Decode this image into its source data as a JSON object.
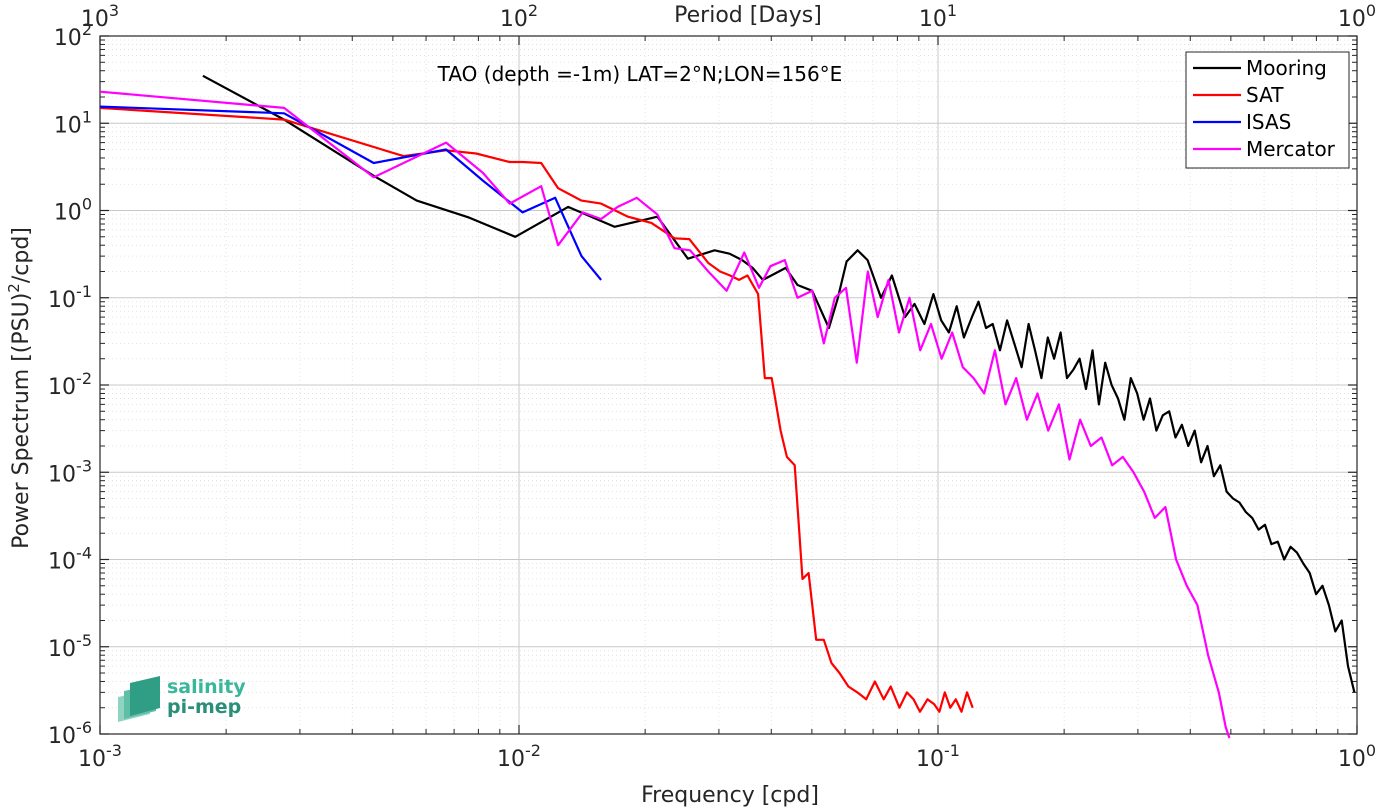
{
  "chart_data": {
    "type": "line",
    "annotation": "TAO (depth =-1m) LAT=2°N;LON=156°E",
    "xlabel": "Frequency [cpd]",
    "ylabel": "Power Spectrum [(PSU)",
    "ylabel_sup": "2",
    "ylabel_tail": "/cpd]",
    "x2label": "Period [Days]",
    "xscale": "log",
    "yscale": "log",
    "xlim": [
      0.001,
      1
    ],
    "ylim": [
      1e-06,
      100
    ],
    "grid": true,
    "legend_position": "top-right",
    "x_ticks": [
      {
        "value": 0.001,
        "base": "10",
        "exp": "-3"
      },
      {
        "value": 0.01,
        "base": "10",
        "exp": "-2"
      },
      {
        "value": 0.1,
        "base": "10",
        "exp": "-1"
      },
      {
        "value": 1,
        "base": "10",
        "exp": "0"
      }
    ],
    "x2_ticks": [
      {
        "value": 0.001,
        "base": "10",
        "exp": "3"
      },
      {
        "value": 0.01,
        "base": "10",
        "exp": "2"
      },
      {
        "value": 0.1,
        "base": "10",
        "exp": "1"
      },
      {
        "value": 1,
        "base": "10",
        "exp": "0"
      }
    ],
    "y_ticks": [
      {
        "value": 100,
        "base": "10",
        "exp": "2"
      },
      {
        "value": 10,
        "base": "10",
        "exp": "1"
      },
      {
        "value": 1,
        "base": "10",
        "exp": "0"
      },
      {
        "value": 0.1,
        "base": "10",
        "exp": "-1"
      },
      {
        "value": 0.01,
        "base": "10",
        "exp": "-2"
      },
      {
        "value": 0.001,
        "base": "10",
        "exp": "-3"
      },
      {
        "value": 0.0001,
        "base": "10",
        "exp": "-4"
      },
      {
        "value": 1e-05,
        "base": "10",
        "exp": "-5"
      },
      {
        "value": 1e-06,
        "base": "10",
        "exp": "-6"
      }
    ],
    "series": [
      {
        "name": "Mooring",
        "color": "#000000",
        "x": [
          0.00176,
          0.00275,
          0.0045,
          0.0057,
          0.0076,
          0.0098,
          0.0131,
          0.0169,
          0.0214,
          0.0253,
          0.0293,
          0.0318,
          0.0341,
          0.0361,
          0.0382,
          0.0409,
          0.0433,
          0.0462,
          0.0501,
          0.0549,
          0.0577,
          0.0605,
          0.0643,
          0.0679,
          0.0731,
          0.0776,
          0.0834,
          0.0879,
          0.0928,
          0.0975,
          0.1018,
          0.1062,
          0.1108,
          0.1153,
          0.1205,
          0.1249,
          0.1302,
          0.1351,
          0.1406,
          0.1462,
          0.1521,
          0.1583,
          0.1645,
          0.1704,
          0.1765,
          0.1828,
          0.1893,
          0.1962,
          0.2032,
          0.2104,
          0.2178,
          0.2256,
          0.2337,
          0.2421,
          0.2507,
          0.2596,
          0.2689,
          0.2785,
          0.2885,
          0.2988,
          0.3095,
          0.3206,
          0.332,
          0.3439,
          0.3562,
          0.3689,
          0.3821,
          0.3957,
          0.4099,
          0.4245,
          0.4397,
          0.4554,
          0.4717,
          0.4885,
          0.506,
          0.5241,
          0.5428,
          0.5622,
          0.5823,
          0.6031,
          0.6247,
          0.647,
          0.6701,
          0.6941,
          0.7189,
          0.7446,
          0.7712,
          0.7988,
          0.8273,
          0.8569,
          0.8875,
          0.9192,
          0.952,
          0.986
        ],
        "y": [
          35,
          11,
          2.5,
          1.3,
          0.83,
          0.5,
          1.1,
          0.65,
          0.85,
          0.28,
          0.35,
          0.32,
          0.27,
          0.22,
          0.16,
          0.19,
          0.22,
          0.14,
          0.12,
          0.045,
          0.1,
          0.26,
          0.35,
          0.27,
          0.1,
          0.18,
          0.06,
          0.085,
          0.05,
          0.11,
          0.055,
          0.04,
          0.08,
          0.035,
          0.06,
          0.09,
          0.045,
          0.05,
          0.025,
          0.055,
          0.03,
          0.016,
          0.05,
          0.025,
          0.012,
          0.035,
          0.02,
          0.04,
          0.012,
          0.015,
          0.02,
          0.009,
          0.025,
          0.006,
          0.018,
          0.01,
          0.007,
          0.004,
          0.012,
          0.008,
          0.004,
          0.007,
          0.003,
          0.0045,
          0.005,
          0.0025,
          0.0035,
          0.002,
          0.003,
          0.0013,
          0.002,
          0.0009,
          0.0012,
          0.0006,
          0.0005,
          0.00045,
          0.00035,
          0.0003,
          0.00022,
          0.00025,
          0.00015,
          0.00016,
          0.0001,
          0.00014,
          0.00012,
          9e-05,
          7e-05,
          4e-05,
          5e-05,
          3e-05,
          1.5e-05,
          2e-05,
          6e-06,
          3e-06
        ]
      },
      {
        "name": "SAT",
        "color": "#ff0000",
        "x": [
          0.001,
          0.00275,
          0.0053,
          0.0067,
          0.0079,
          0.0095,
          0.0102,
          0.0113,
          0.0124,
          0.0141,
          0.0157,
          0.0182,
          0.0207,
          0.0235,
          0.0255,
          0.0283,
          0.0302,
          0.0319,
          0.0335,
          0.0351,
          0.0372,
          0.0386,
          0.0401,
          0.0421,
          0.0436,
          0.0455,
          0.0475,
          0.0491,
          0.0512,
          0.0534,
          0.0557,
          0.0582,
          0.0611,
          0.0642,
          0.0674,
          0.0707,
          0.0742,
          0.0771,
          0.0809,
          0.0843,
          0.0874,
          0.0906,
          0.0944,
          0.0979,
          0.1008,
          0.1038,
          0.107,
          0.1103,
          0.1138,
          0.1173,
          0.121
        ],
        "y": [
          15,
          11,
          4.2,
          4.9,
          4.5,
          3.6,
          3.6,
          3.5,
          1.8,
          1.3,
          1.2,
          0.85,
          0.72,
          0.48,
          0.47,
          0.25,
          0.2,
          0.18,
          0.16,
          0.18,
          0.11,
          0.012,
          0.012,
          0.003,
          0.0015,
          0.0012,
          6e-05,
          7e-05,
          1.2e-05,
          1.2e-05,
          6.5e-06,
          5e-06,
          3.5e-06,
          3e-06,
          2.5e-06,
          4e-06,
          2.5e-06,
          3.5e-06,
          2e-06,
          3e-06,
          2.5e-06,
          1.8e-06,
          2.5e-06,
          2.2e-06,
          1.8e-06,
          3e-06,
          2e-06,
          2.5e-06,
          1.8e-06,
          3e-06,
          2e-06
        ]
      },
      {
        "name": "ISAS",
        "color": "#0000ff",
        "x": [
          0.001,
          0.00275,
          0.0045,
          0.0067,
          0.0082,
          0.0102,
          0.0122,
          0.0141,
          0.0157
        ],
        "y": [
          15.5,
          13,
          3.5,
          5,
          2.2,
          0.95,
          1.4,
          0.3,
          0.16
        ]
      },
      {
        "name": "Mercator",
        "color": "#ff00ff",
        "x": [
          0.001,
          0.00275,
          0.0045,
          0.0067,
          0.0082,
          0.0095,
          0.0113,
          0.0124,
          0.0142,
          0.0157,
          0.0172,
          0.0191,
          0.0214,
          0.0235,
          0.0256,
          0.0283,
          0.0313,
          0.0345,
          0.0374,
          0.0398,
          0.0431,
          0.0462,
          0.0501,
          0.0534,
          0.0567,
          0.0603,
          0.064,
          0.068,
          0.0718,
          0.0762,
          0.0807,
          0.0855,
          0.0907,
          0.0962,
          0.102,
          0.1081,
          0.1146,
          0.1216,
          0.1289,
          0.1367,
          0.1449,
          0.1537,
          0.163,
          0.1728,
          0.1832,
          0.1943,
          0.206,
          0.2184,
          0.2316,
          0.2456,
          0.2604,
          0.2761,
          0.2928,
          0.3104,
          0.3292,
          0.349,
          0.3701,
          0.3924,
          0.4161,
          0.4412,
          0.4678,
          0.486,
          0.4961
        ],
        "y": [
          23,
          15,
          2.4,
          6,
          2.7,
          1.2,
          1.9,
          0.4,
          0.95,
          0.8,
          1.1,
          1.4,
          0.9,
          0.37,
          0.35,
          0.2,
          0.12,
          0.33,
          0.13,
          0.23,
          0.27,
          0.1,
          0.12,
          0.03,
          0.1,
          0.13,
          0.018,
          0.2,
          0.06,
          0.16,
          0.04,
          0.1,
          0.025,
          0.05,
          0.02,
          0.04,
          0.016,
          0.012,
          0.008,
          0.025,
          0.006,
          0.012,
          0.004,
          0.008,
          0.003,
          0.006,
          0.0014,
          0.004,
          0.002,
          0.0025,
          0.0012,
          0.0015,
          0.001,
          0.0006,
          0.0003,
          0.0004,
          0.0001,
          5e-05,
          3e-05,
          8e-06,
          3e-06,
          1.2e-06,
          9e-07
        ]
      }
    ]
  },
  "logo": {
    "line1": "salinity",
    "line2": "pi-mep"
  }
}
